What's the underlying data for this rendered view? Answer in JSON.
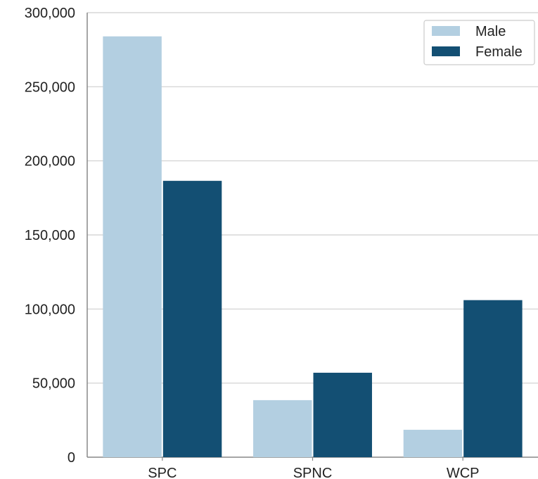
{
  "chart_data": {
    "type": "bar",
    "categories": [
      "SPC",
      "SPNC",
      "WCP"
    ],
    "series": [
      {
        "name": "Male",
        "values": [
          284000,
          38500,
          18500
        ],
        "color": "#b3cfe1"
      },
      {
        "name": "Female",
        "values": [
          186500,
          57000,
          106000
        ],
        "color": "#134f73"
      }
    ],
    "title": "",
    "xlabel": "",
    "ylabel": "",
    "ylim": [
      0,
      300000
    ],
    "yticks": [
      0,
      50000,
      100000,
      150000,
      200000,
      250000,
      300000
    ],
    "ytick_labels": [
      "0",
      "50,000",
      "100,000",
      "150,000",
      "200,000",
      "250,000",
      "300,000"
    ],
    "grid": "horizontal",
    "legend_position": "top-right",
    "colors": {
      "grid": "#cfcfcf",
      "axis": "#888888",
      "background": "#ffffff"
    }
  }
}
